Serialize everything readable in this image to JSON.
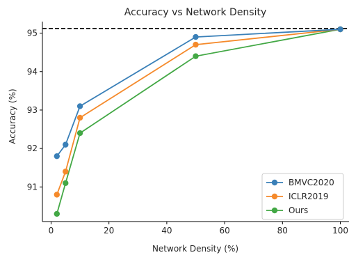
{
  "chart_data": {
    "type": "line",
    "title": "Accuracy vs Network Density",
    "xlabel": "Network Density (%)",
    "ylabel": "Accuracy (%)",
    "xlim": [
      -3,
      103
    ],
    "ylim": [
      90.1,
      95.3
    ],
    "xticks": [
      0,
      20,
      40,
      60,
      80,
      100
    ],
    "yticks": [
      91,
      92,
      93,
      94,
      95
    ],
    "grid": false,
    "legend_position": "lower-right",
    "reference_line": {
      "y": 95.12,
      "style": "dashed",
      "color": "#1a1a1a"
    },
    "x": [
      2,
      5,
      10,
      50,
      100
    ],
    "series": [
      {
        "name": "BMVC2020",
        "color": "#3a80b8",
        "values": [
          91.8,
          92.1,
          93.1,
          94.9,
          95.1
        ]
      },
      {
        "name": "ICLR2019",
        "color": "#f58a2b",
        "values": [
          90.8,
          91.4,
          92.8,
          94.7,
          95.1
        ]
      },
      {
        "name": "Ours",
        "color": "#43a845",
        "values": [
          90.3,
          91.1,
          92.4,
          94.4,
          95.1
        ]
      }
    ]
  }
}
